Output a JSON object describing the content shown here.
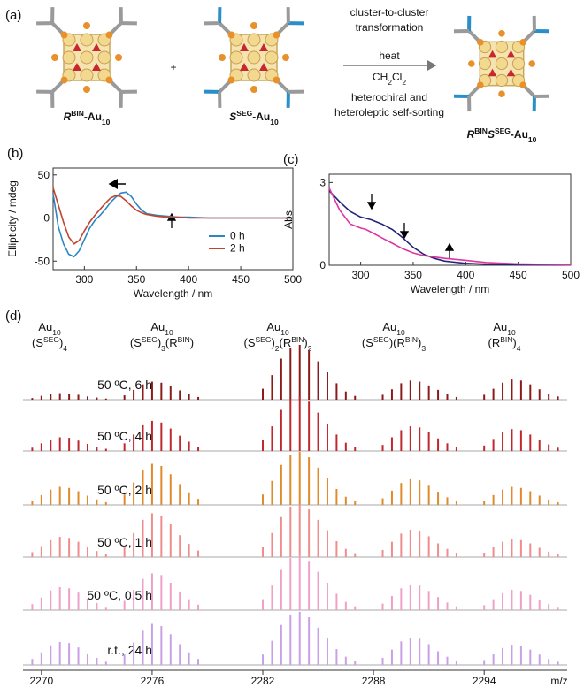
{
  "panel_a": {
    "label": "(a)",
    "compounds": [
      {
        "parts": [
          "R",
          "BIN",
          "-Au",
          "10"
        ]
      },
      {
        "parts": [
          "S",
          "SEG",
          "-Au",
          "10"
        ]
      },
      {
        "parts": [
          "R",
          "BIN",
          "S",
          "SEG",
          "-Au",
          "10"
        ]
      }
    ],
    "plus": "+",
    "reaction": {
      "above": [
        "cluster-to-cluster",
        "transformation"
      ],
      "heat": "heat",
      "solvent": [
        "CH",
        "2",
        "Cl",
        "2"
      ],
      "below": [
        "heterochiral and",
        "heteroleptic self-sorting"
      ]
    }
  },
  "chart_data": [
    {
      "type": "line",
      "panel_label": "(b)",
      "x_label": "Wavelength / nm",
      "y_label": "Ellipticity / mdeg",
      "x": [
        270,
        275,
        280,
        285,
        290,
        295,
        300,
        305,
        310,
        315,
        320,
        325,
        330,
        335,
        340,
        345,
        350,
        355,
        360,
        370,
        380,
        390,
        400,
        420,
        440,
        460,
        480,
        500
      ],
      "xlim": [
        270,
        500
      ],
      "xticks": [
        300,
        350,
        400,
        450,
        500
      ],
      "ylim": [
        -60,
        58
      ],
      "yticks": [
        -50,
        0,
        50
      ],
      "legend": "lower right",
      "series": [
        {
          "name": "0 h",
          "color": "#2b86c2",
          "values": [
            28,
            -10,
            -30,
            -42,
            -45,
            -38,
            -25,
            -12,
            -3,
            3,
            10,
            18,
            24,
            29,
            30,
            25,
            16,
            9,
            5,
            3,
            2,
            1,
            1,
            0,
            0,
            0,
            0,
            0
          ]
        },
        {
          "name": "2 h",
          "color": "#c0452f",
          "values": [
            35,
            15,
            -5,
            -22,
            -30,
            -26,
            -15,
            -5,
            3,
            10,
            17,
            23,
            26,
            25,
            20,
            14,
            9,
            6,
            4,
            2,
            1,
            1,
            0,
            0,
            0,
            0,
            0,
            0
          ]
        }
      ]
    },
    {
      "type": "line",
      "panel_label": "(c)",
      "x_label": "Wavelength / nm",
      "y_label": "Abs",
      "x": [
        270,
        280,
        290,
        300,
        305,
        310,
        320,
        330,
        340,
        350,
        360,
        370,
        380,
        400,
        420,
        450,
        500
      ],
      "xlim": [
        270,
        500
      ],
      "xticks": [
        300,
        350,
        400,
        450,
        500
      ],
      "ylim": [
        0,
        3.3
      ],
      "yticks": [
        0,
        3
      ],
      "series": [
        {
          "color": "#22237a",
          "values": [
            2.7,
            2.3,
            1.95,
            1.75,
            1.7,
            1.65,
            1.5,
            1.3,
            1.0,
            0.65,
            0.4,
            0.25,
            0.15,
            0.07,
            0.04,
            0.02,
            0.01
          ]
        },
        {
          "color": "#e0359f",
          "values": [
            2.8,
            2.0,
            1.5,
            1.35,
            1.3,
            1.2,
            1.0,
            0.8,
            0.6,
            0.45,
            0.35,
            0.3,
            0.25,
            0.18,
            0.1,
            0.05,
            0.02
          ]
        }
      ]
    },
    {
      "type": "spectrum",
      "panel_label": "(d)",
      "x_label": "m/z",
      "cluster_labels": [
        {
          "line1": [
            "Au",
            "10"
          ],
          "line2": [
            "(S",
            "SEG",
            ")",
            "4"
          ]
        },
        {
          "line1": [
            "Au",
            "10"
          ],
          "line2": [
            "(S",
            "SEG",
            ")",
            "3",
            "(R",
            "BIN",
            ")"
          ]
        },
        {
          "line1": [
            "Au",
            "10"
          ],
          "line2": [
            "(S",
            "SEG",
            ")",
            "2",
            "(R",
            "BIN",
            ")",
            "2"
          ]
        },
        {
          "line1": [
            "Au",
            "10"
          ],
          "line2": [
            "(S",
            "SEG",
            ")(R",
            "BIN",
            ")",
            "3"
          ]
        },
        {
          "line1": [
            "Au",
            "10"
          ],
          "line2": [
            "(R",
            "BIN",
            ")",
            "4"
          ]
        }
      ],
      "x": [
        2269.5,
        2270,
        2270.5,
        2271,
        2271.5,
        2272,
        2272.5,
        2273,
        2273.5,
        2274.5,
        2275,
        2275.5,
        2276,
        2276.5,
        2277,
        2277.5,
        2278,
        2278.5,
        2282,
        2282.5,
        2283,
        2283.5,
        2284,
        2284.5,
        2285,
        2285.5,
        2286,
        2286.5,
        2287,
        2288.5,
        2289,
        2289.5,
        2290,
        2290.5,
        2291,
        2291.5,
        2292,
        2292.5,
        2294,
        2294.5,
        2295,
        2295.5,
        2296,
        2296.5,
        2297,
        2297.5,
        2298
      ],
      "xlim": [
        2269,
        2298.5
      ],
      "xticks": [
        2270,
        2276,
        2282,
        2288,
        2294
      ],
      "ylim": [
        0,
        100
      ],
      "series": [
        {
          "name": "50 ºC, 6 h",
          "color": "#8b1a1a",
          "values": [
            3,
            7,
            10,
            12,
            11,
            9,
            6,
            4,
            2,
            8,
            18,
            28,
            33,
            31,
            25,
            17,
            10,
            5,
            20,
            45,
            75,
            95,
            100,
            90,
            70,
            50,
            30,
            15,
            7,
            9,
            19,
            30,
            35,
            33,
            26,
            18,
            11,
            5,
            9,
            20,
            31,
            37,
            35,
            28,
            19,
            11,
            6
          ]
        },
        {
          "name": "50 ºC, 4 h",
          "color": "#c0282d",
          "values": [
            6,
            14,
            21,
            25,
            24,
            19,
            13,
            8,
            4,
            14,
            30,
            47,
            55,
            52,
            41,
            28,
            17,
            8,
            20,
            45,
            75,
            95,
            100,
            90,
            70,
            50,
            30,
            15,
            7,
            11,
            25,
            38,
            45,
            43,
            34,
            23,
            14,
            7,
            10,
            22,
            34,
            40,
            38,
            30,
            20,
            12,
            6
          ]
        },
        {
          "name": "50 ºC, 2 h",
          "color": "#e08a2a",
          "values": [
            8,
            18,
            28,
            33,
            31,
            25,
            17,
            10,
            5,
            19,
            41,
            64,
            75,
            71,
            56,
            38,
            23,
            11,
            19,
            44,
            73,
            92,
            97,
            87,
            68,
            49,
            29,
            15,
            7,
            12,
            26,
            40,
            47,
            45,
            35,
            24,
            14,
            7,
            8,
            18,
            28,
            33,
            31,
            25,
            17,
            10,
            5
          ]
        },
        {
          "name": "50 ºC, 1 h",
          "color": "#f08c8c",
          "values": [
            9,
            20,
            31,
            37,
            35,
            28,
            19,
            11,
            6,
            20,
            44,
            68,
            80,
            76,
            60,
            40,
            24,
            12,
            19,
            44,
            73,
            92,
            97,
            87,
            68,
            49,
            29,
            15,
            7,
            13,
            28,
            43,
            50,
            48,
            38,
            25,
            15,
            8,
            8,
            18,
            28,
            33,
            31,
            25,
            17,
            10,
            5
          ]
        },
        {
          "name": "50 ºC, 0.5 h",
          "color": "#f0a0c8",
          "values": [
            11,
            23,
            36,
            42,
            40,
            32,
            21,
            13,
            6,
            17,
            37,
            57,
            67,
            64,
            50,
            34,
            20,
            10,
            20,
            45,
            75,
            95,
            100,
            90,
            70,
            50,
            30,
            15,
            7,
            12,
            26,
            40,
            47,
            45,
            35,
            24,
            14,
            7,
            9,
            20,
            31,
            37,
            35,
            28,
            19,
            11,
            6
          ]
        },
        {
          "name": "r.t., 24 h",
          "color": "#c9a0e8",
          "values": [
            11,
            23,
            36,
            42,
            40,
            32,
            21,
            13,
            6,
            19,
            41,
            64,
            75,
            71,
            56,
            38,
            23,
            11,
            19,
            44,
            73,
            92,
            97,
            87,
            68,
            49,
            29,
            15,
            7,
            13,
            28,
            43,
            50,
            48,
            38,
            25,
            15,
            8,
            9,
            20,
            31,
            37,
            35,
            28,
            19,
            11,
            6
          ]
        }
      ]
    }
  ]
}
